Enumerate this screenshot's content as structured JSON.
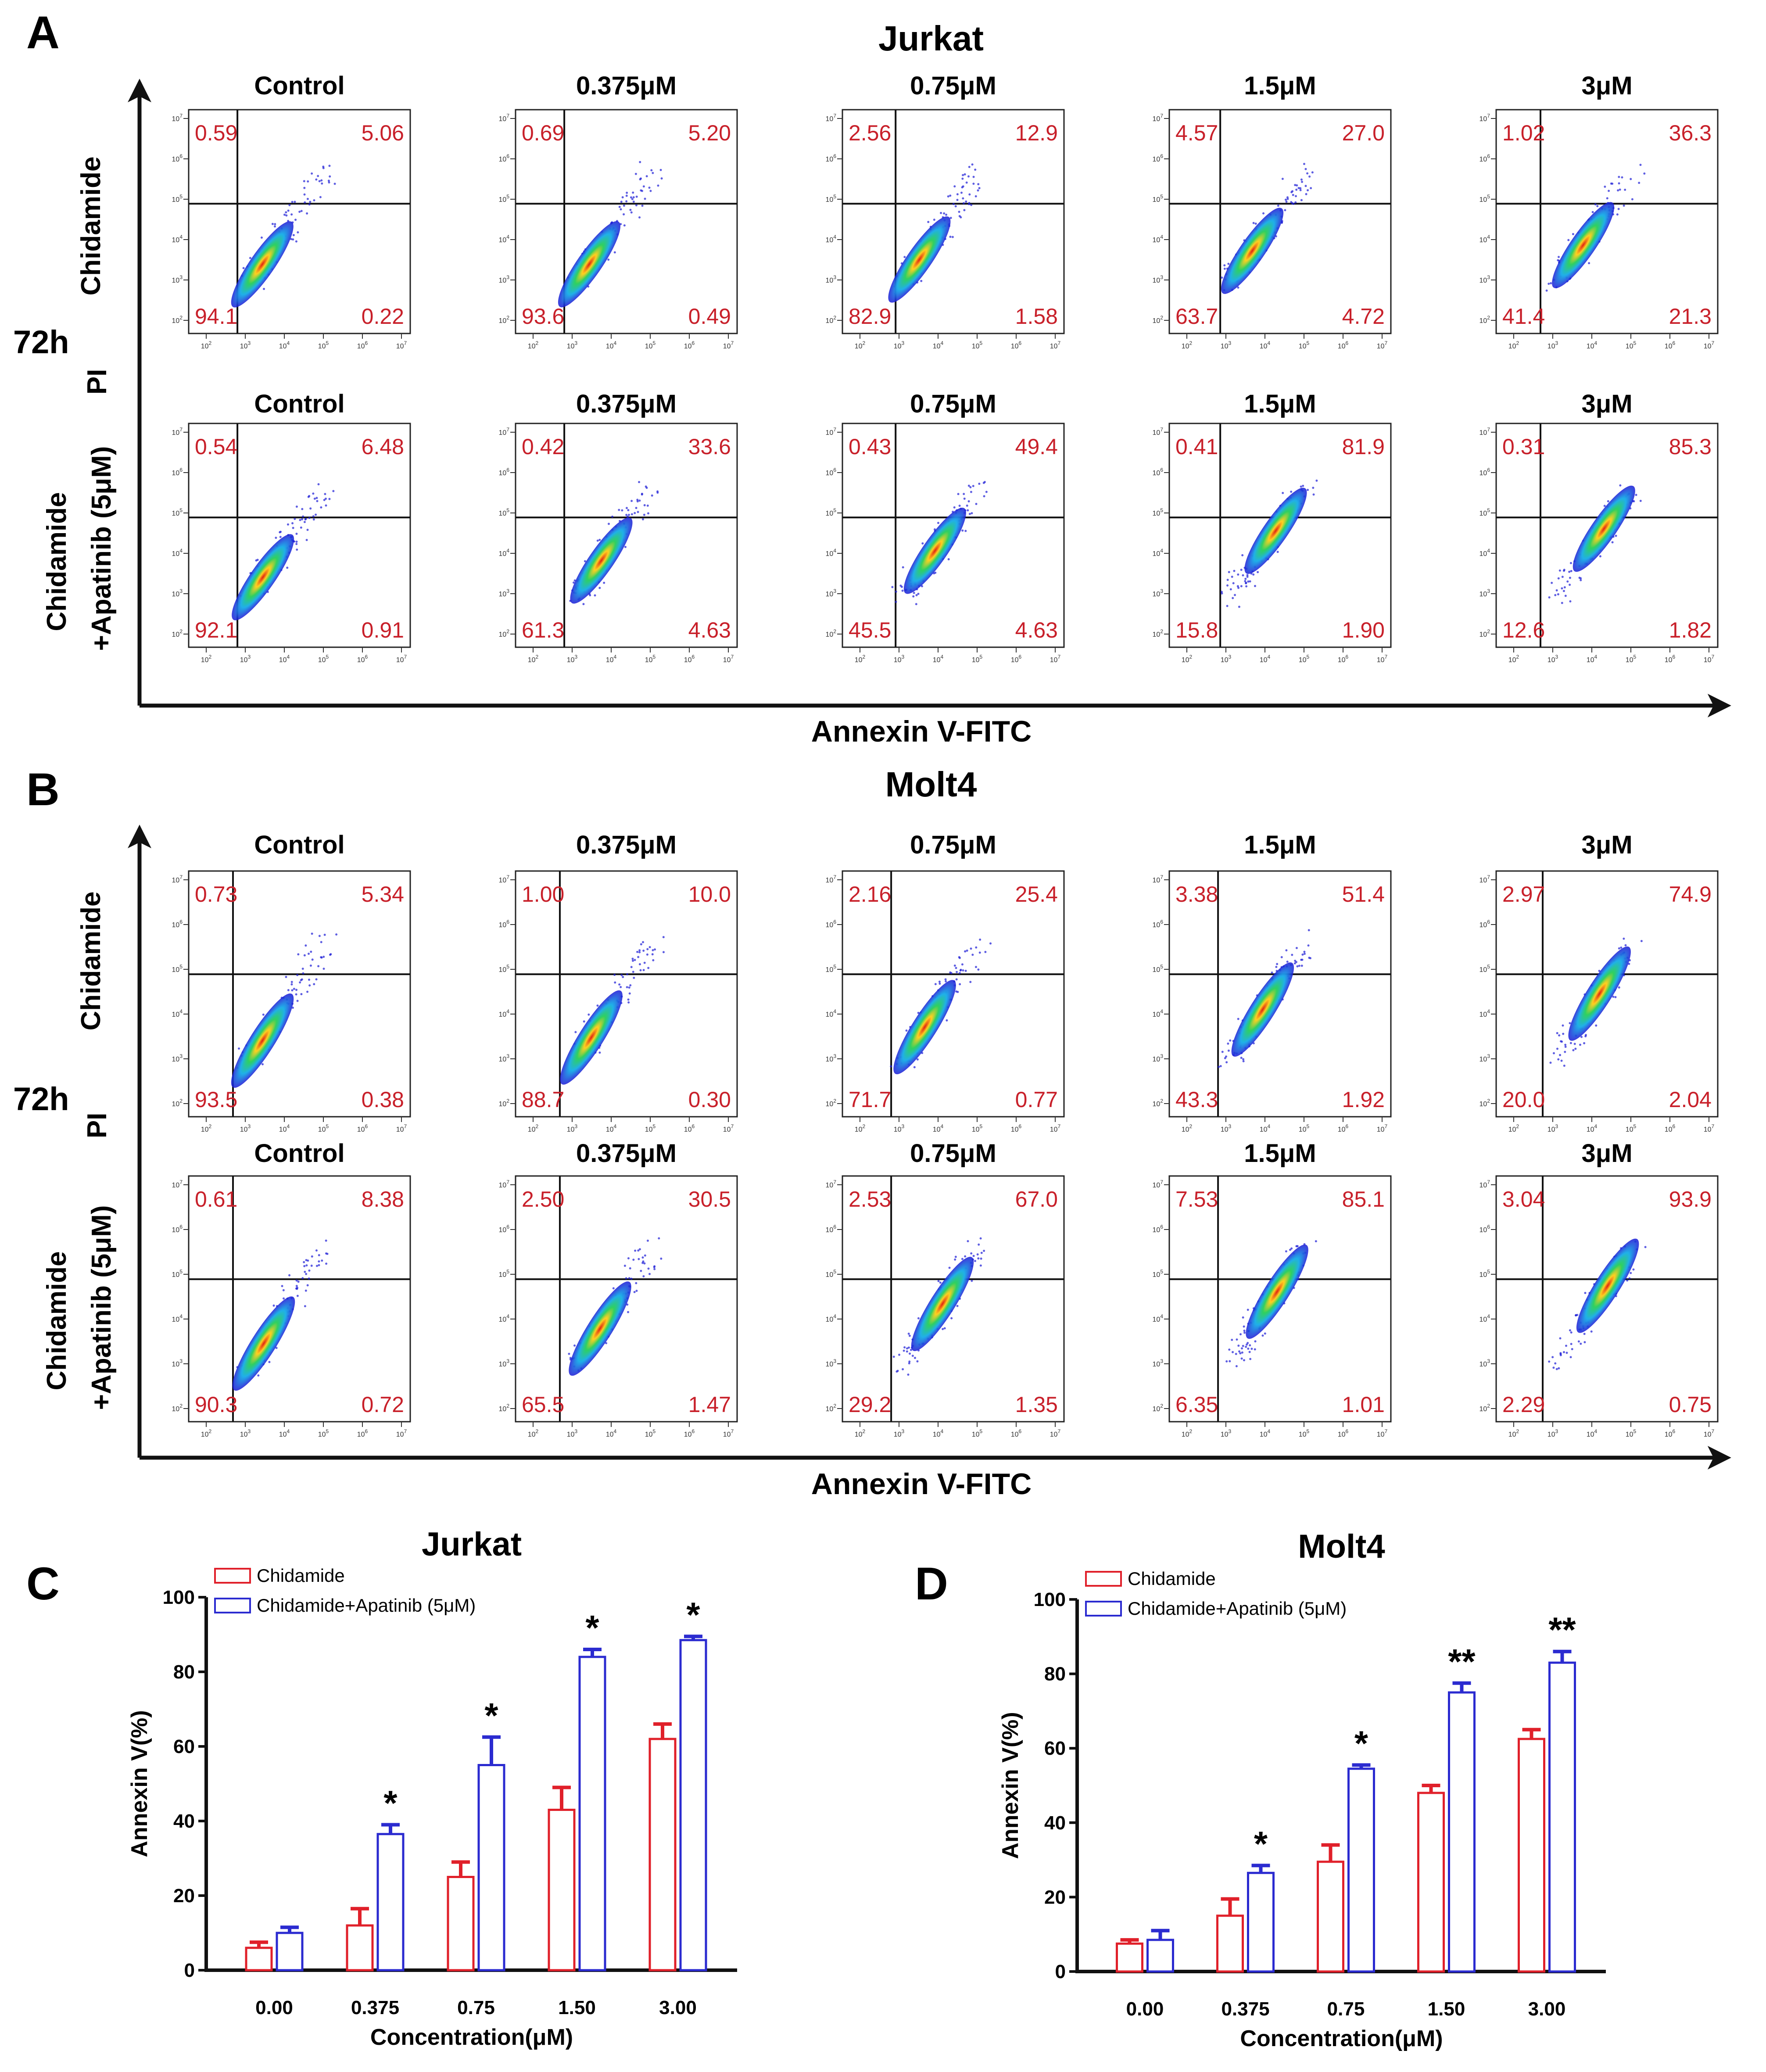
{
  "figure": {
    "panel_A": {
      "letter": "A",
      "title": "Jurkat",
      "time": "72h",
      "row_top": "Chidamide",
      "row_bottom_1": "Chidamide",
      "row_bottom_2": "+Apatinib (5μM)",
      "y_axis": "PI",
      "x_axis": "Annexin V-FITC"
    },
    "panel_B": {
      "letter": "B",
      "title": "Molt4",
      "time": "72h",
      "row_top": "Chidamide",
      "row_bottom_1": "Chidamide",
      "row_bottom_2": "+Apatinib (5μM)",
      "y_axis": "PI",
      "x_axis": "Annexin V-FITC"
    },
    "panel_C": {
      "letter": "C"
    },
    "panel_D": {
      "letter": "D"
    },
    "columns": [
      "Control",
      "0.375μM",
      "0.75μM",
      "1.5μM",
      "3μM"
    ],
    "tick_exponents": [
      "2",
      "3",
      "4",
      "5",
      "6",
      "7"
    ]
  },
  "colors": {
    "quadrant_text": "#c8202a",
    "chidamide_bar": "#e0202a",
    "combo_bar": "#2b2bd0",
    "density_low": "#1a1ad6",
    "density_high": "#e02010"
  },
  "chart_data": [
    {
      "type": "flow-cytometry-quadrants",
      "cell_line": "Jurkat",
      "rows": [
        {
          "treatment": "Chidamide",
          "plots": [
            {
              "ul": "0.59",
              "ur": "5.06",
              "ll": "94.1",
              "lr": "0.22"
            },
            {
              "ul": "0.69",
              "ur": "5.20",
              "ll": "93.6",
              "lr": "0.49"
            },
            {
              "ul": "2.56",
              "ur": "12.9",
              "ll": "82.9",
              "lr": "1.58"
            },
            {
              "ul": "4.57",
              "ur": "27.0",
              "ll": "63.7",
              "lr": "4.72"
            },
            {
              "ul": "1.02",
              "ur": "36.3",
              "ll": "41.4",
              "lr": "21.3"
            }
          ]
        },
        {
          "treatment": "Chidamide+Apatinib (5μM)",
          "plots": [
            {
              "ul": "0.54",
              "ur": "6.48",
              "ll": "92.1",
              "lr": "0.91"
            },
            {
              "ul": "0.42",
              "ur": "33.6",
              "ll": "61.3",
              "lr": "4.63"
            },
            {
              "ul": "0.43",
              "ur": "49.4",
              "ll": "45.5",
              "lr": "4.63"
            },
            {
              "ul": "0.41",
              "ur": "81.9",
              "ll": "15.8",
              "lr": "1.90"
            },
            {
              "ul": "0.31",
              "ur": "85.3",
              "ll": "12.6",
              "lr": "1.82"
            }
          ]
        }
      ]
    },
    {
      "type": "flow-cytometry-quadrants",
      "cell_line": "Molt4",
      "rows": [
        {
          "treatment": "Chidamide",
          "plots": [
            {
              "ul": "0.73",
              "ur": "5.34",
              "ll": "93.5",
              "lr": "0.38"
            },
            {
              "ul": "1.00",
              "ur": "10.0",
              "ll": "88.7",
              "lr": "0.30"
            },
            {
              "ul": "2.16",
              "ur": "25.4",
              "ll": "71.7",
              "lr": "0.77"
            },
            {
              "ul": "3.38",
              "ur": "51.4",
              "ll": "43.3",
              "lr": "1.92"
            },
            {
              "ul": "2.97",
              "ur": "74.9",
              "ll": "20.0",
              "lr": "2.04"
            }
          ]
        },
        {
          "treatment": "Chidamide+Apatinib (5μM)",
          "plots": [
            {
              "ul": "0.61",
              "ur": "8.38",
              "ll": "90.3",
              "lr": "0.72"
            },
            {
              "ul": "2.50",
              "ur": "30.5",
              "ll": "65.5",
              "lr": "1.47"
            },
            {
              "ul": "2.53",
              "ur": "67.0",
              "ll": "29.2",
              "lr": "1.35"
            },
            {
              "ul": "7.53",
              "ur": "85.1",
              "ll": "6.35",
              "lr": "1.01"
            },
            {
              "ul": "3.04",
              "ur": "93.9",
              "ll": "2.29",
              "lr": "0.75"
            }
          ]
        }
      ]
    },
    {
      "type": "bar",
      "title": "Jurkat",
      "categories": [
        "0.00",
        "0.375",
        "0.75",
        "1.50",
        "3.00"
      ],
      "xlabel": "Concentration(μM)",
      "ylabel": "Annexin V(%)",
      "ylim": [
        0,
        100
      ],
      "yticks": [
        "0",
        "20",
        "40",
        "60",
        "80",
        "100"
      ],
      "series": [
        {
          "name": "Chidamide",
          "values": [
            6,
            12,
            25,
            43,
            62
          ],
          "errors": [
            1.5,
            4.5,
            4,
            6,
            4
          ]
        },
        {
          "name": "Chidamide+Apatinib (5μM)",
          "values": [
            10,
            36.5,
            55,
            84,
            88.5
          ],
          "errors": [
            1.5,
            2.5,
            7.5,
            2,
            1
          ]
        }
      ],
      "significance": [
        "",
        "*",
        "*",
        "*",
        "*"
      ]
    },
    {
      "type": "bar",
      "title": "Molt4",
      "categories": [
        "0.00",
        "0.375",
        "0.75",
        "1.50",
        "3.00"
      ],
      "xlabel": "Concentration(μM)",
      "ylabel": "Annexin V(%)",
      "ylim": [
        0,
        100
      ],
      "yticks": [
        "0",
        "20",
        "40",
        "60",
        "80",
        "100"
      ],
      "series": [
        {
          "name": "Chidamide",
          "values": [
            7.5,
            15,
            29.5,
            48,
            62.5
          ],
          "errors": [
            1,
            4.5,
            4.5,
            2,
            2.5
          ]
        },
        {
          "name": "Chidamide+Apatinib (5μM)",
          "values": [
            8.5,
            26.5,
            54.5,
            75,
            83
          ],
          "errors": [
            2.5,
            2,
            1,
            2.5,
            3
          ]
        }
      ],
      "significance": [
        "",
        "*",
        "*",
        "**",
        "**"
      ]
    }
  ]
}
